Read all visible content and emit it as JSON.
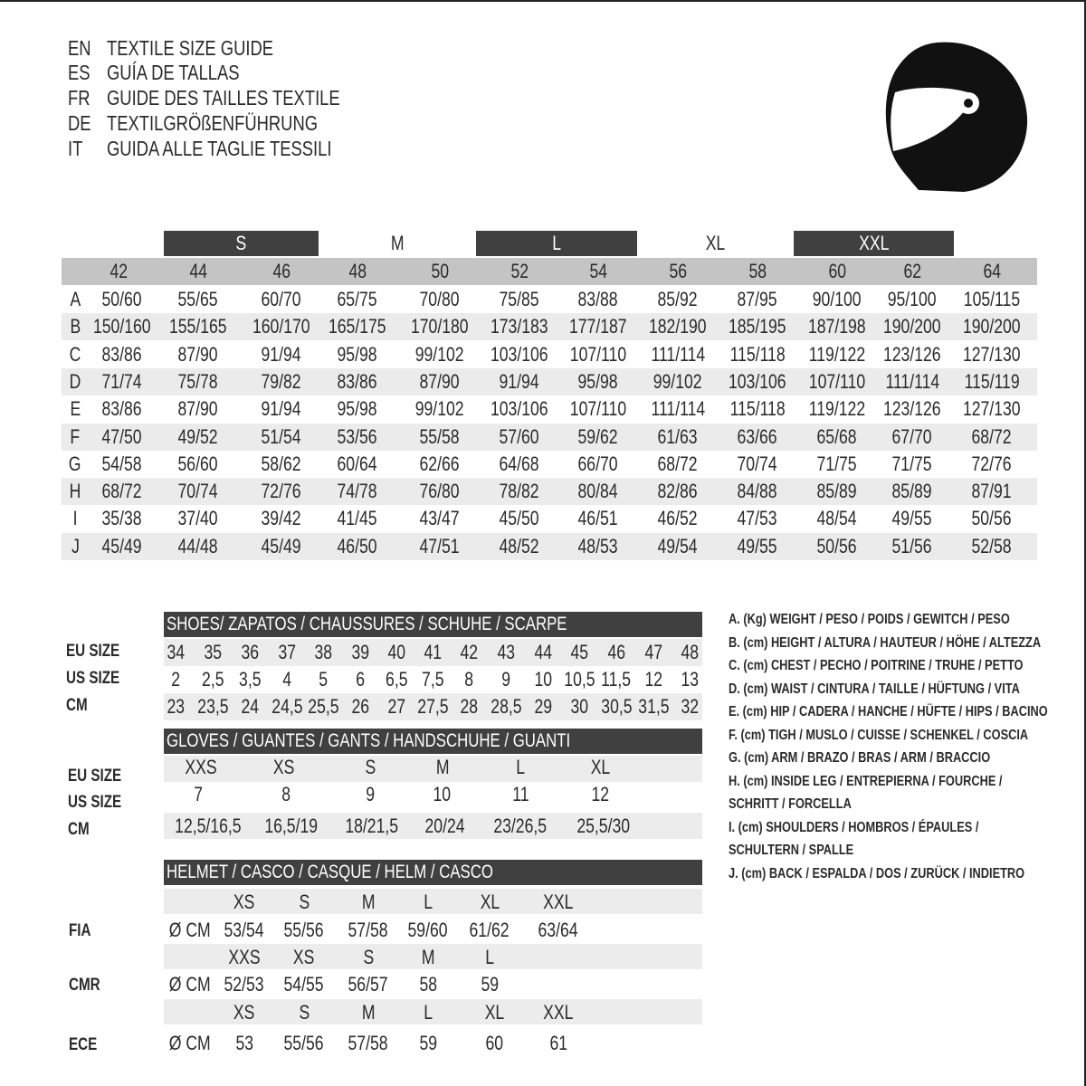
{
  "titles": [
    {
      "code": "EN",
      "text": "TEXTILE SIZE GUIDE"
    },
    {
      "code": "ES",
      "text": "GUÍA DE TALLAS"
    },
    {
      "code": "FR",
      "text": "GUIDE DES TAILLES TEXTILE"
    },
    {
      "code": "DE",
      "text": "TEXTILGRÖßENFÜHRUNG"
    },
    {
      "code": "IT",
      "text": "GUIDA ALLE TAGLIE TESSILI"
    }
  ],
  "logo_icon": "helmet-icon",
  "textile": {
    "size_groups": [
      {
        "label": "S",
        "dark": true
      },
      {
        "label": "M",
        "dark": false
      },
      {
        "label": "L",
        "dark": true
      },
      {
        "label": "XL",
        "dark": false
      },
      {
        "label": "XXL",
        "dark": true
      }
    ],
    "eu_sizes": [
      "42",
      "44",
      "46",
      "48",
      "50",
      "52",
      "54",
      "56",
      "58",
      "60",
      "62",
      "64"
    ],
    "rows": [
      {
        "key": "A",
        "values": [
          "50/60",
          "55/65",
          "60/70",
          "65/75",
          "70/80",
          "75/85",
          "83/88",
          "85/92",
          "87/95",
          "90/100",
          "95/100",
          "105/115"
        ]
      },
      {
        "key": "B",
        "values": [
          "150/160",
          "155/165",
          "160/170",
          "165/175",
          "170/180",
          "173/183",
          "177/187",
          "182/190",
          "185/195",
          "187/198",
          "190/200",
          "190/200"
        ]
      },
      {
        "key": "C",
        "values": [
          "83/86",
          "87/90",
          "91/94",
          "95/98",
          "99/102",
          "103/106",
          "107/110",
          "111/114",
          "115/118",
          "119/122",
          "123/126",
          "127/130"
        ]
      },
      {
        "key": "D",
        "values": [
          "71/74",
          "75/78",
          "79/82",
          "83/86",
          "87/90",
          "91/94",
          "95/98",
          "99/102",
          "103/106",
          "107/110",
          "111/114",
          "115/119"
        ]
      },
      {
        "key": "E",
        "values": [
          "83/86",
          "87/90",
          "91/94",
          "95/98",
          "99/102",
          "103/106",
          "107/110",
          "111/114",
          "115/118",
          "119/122",
          "123/126",
          "127/130"
        ]
      },
      {
        "key": "F",
        "values": [
          "47/50",
          "49/52",
          "51/54",
          "53/56",
          "55/58",
          "57/60",
          "59/62",
          "61/63",
          "63/66",
          "65/68",
          "67/70",
          "68/72"
        ]
      },
      {
        "key": "G",
        "values": [
          "54/58",
          "56/60",
          "58/62",
          "60/64",
          "62/66",
          "64/68",
          "66/70",
          "68/72",
          "70/74",
          "71/75",
          "71/75",
          "72/76"
        ]
      },
      {
        "key": "H",
        "values": [
          "68/72",
          "70/74",
          "72/76",
          "74/78",
          "76/80",
          "78/82",
          "80/84",
          "82/86",
          "84/88",
          "85/89",
          "85/89",
          "87/91"
        ]
      },
      {
        "key": "I",
        "values": [
          "35/38",
          "37/40",
          "39/42",
          "41/45",
          "43/47",
          "45/50",
          "46/51",
          "46/52",
          "47/53",
          "48/54",
          "49/55",
          "50/56"
        ]
      },
      {
        "key": "J",
        "values": [
          "45/49",
          "44/48",
          "45/49",
          "46/50",
          "47/51",
          "48/52",
          "48/53",
          "49/54",
          "49/55",
          "50/56",
          "51/56",
          "52/58"
        ]
      }
    ]
  },
  "shoes": {
    "title": "SHOES/ ZAPATOS / CHAUSSURES / SCHUHE / SCARPE",
    "rows": [
      {
        "label": "EU SIZE",
        "values": [
          "34",
          "35",
          "36",
          "37",
          "38",
          "39",
          "40",
          "41",
          "42",
          "43",
          "44",
          "45",
          "46",
          "47",
          "48"
        ]
      },
      {
        "label": "US SIZE",
        "values": [
          "2",
          "2,5",
          "3,5",
          "4",
          "5",
          "6",
          "6,5",
          "7,5",
          "8",
          "9",
          "10",
          "10,5",
          "11,5",
          "12",
          "13"
        ]
      },
      {
        "label": "CM",
        "values": [
          "23",
          "23,5",
          "24",
          "24,5",
          "25,5",
          "26",
          "27",
          "27,5",
          "28",
          "28,5",
          "29",
          "30",
          "30,5",
          "31,5",
          "32"
        ]
      }
    ]
  },
  "gloves": {
    "title": "GLOVES / GUANTES / GANTS / HANDSCHUHE / GUANTI",
    "rows": [
      {
        "label": "EU SIZE",
        "values": [
          "XXS",
          "XS",
          "S",
          "M",
          "L",
          "XL"
        ]
      },
      {
        "label": "US SIZE",
        "values": [
          "7",
          "8",
          "9",
          "10",
          "11",
          "12"
        ]
      },
      {
        "label": "CM",
        "values": [
          "12,5/16,5",
          "16,5/19",
          "18/21,5",
          "20/24",
          "23/26,5",
          "25,5/30"
        ]
      }
    ]
  },
  "helmet": {
    "title": "HELMET / CASCO / CASQUE / HELM / CASCO",
    "unit": "Ø CM",
    "standards": [
      {
        "label": "FIA",
        "sizes": [
          "XS",
          "S",
          "M",
          "L",
          "XL",
          "XXL"
        ],
        "values": [
          "53/54",
          "55/56",
          "57/58",
          "59/60",
          "61/62",
          "63/64"
        ]
      },
      {
        "label": "CMR",
        "sizes": [
          "XXS",
          "XS",
          "S",
          "M",
          "L"
        ],
        "values": [
          "52/53",
          "54/55",
          "56/57",
          "58",
          "59"
        ]
      },
      {
        "label": "ECE",
        "sizes": [
          "XS",
          "S",
          "M",
          "L",
          "XL",
          "XXL"
        ],
        "values": [
          "53",
          "55/56",
          "57/58",
          "59",
          "60",
          "61"
        ]
      }
    ]
  },
  "legend": [
    "A. (Kg) WEIGHT / PESO / POIDS / GEWITCH / PESO",
    "B. (cm) HEIGHT / ALTURA / HAUTEUR / HÖHE / ALTEZZA",
    "C. (cm) CHEST / PECHO / POITRINE / TRUHE / PETTO",
    "D. (cm) WAIST / CINTURA / TAILLE / HÜFTUNG / VITA",
    "E. (cm) HIP / CADERA / HANCHE / HÜFTE / HIPS /  BACINO",
    "F.  (cm) TIGH / MUSLO / CUISSE / SCHENKEL / COSCIA",
    "G. (cm) ARM  / BRAZO / BRAS / ARM / BRACCIO",
    "H. (cm) INSIDE LEG / ENTREPIERNA / FOURCHE /",
    "SCHRITT / FORCELLA",
    "I.  (cm) SHOULDERS / HOMBROS / ÉPAULES /",
    "SCHULTERN / SPALLE",
    "J. (cm) BACK / ESPALDA / DOS / ZURÜCK / INDIETRO"
  ]
}
